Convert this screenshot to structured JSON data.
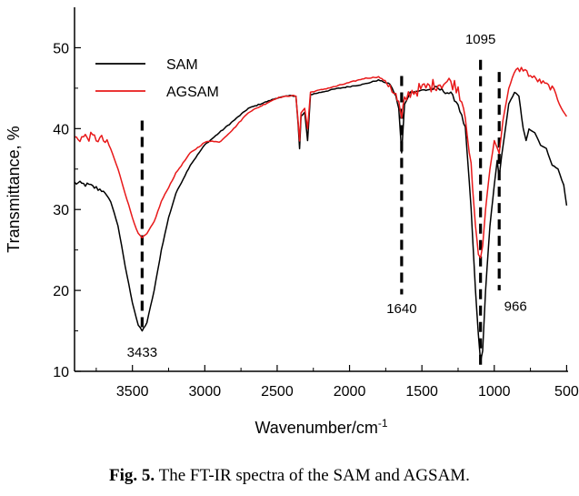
{
  "chart_data": {
    "type": "line",
    "xlabel": "Wavenumber/cm",
    "xlabel_sup": "-1",
    "ylabel": "Transmittance, %",
    "xlim": [
      3900,
      490
    ],
    "ylim": [
      10,
      55
    ],
    "x_ticks": [
      3500,
      3000,
      2500,
      2000,
      1500,
      1000,
      500
    ],
    "y_ticks": [
      10,
      20,
      30,
      40,
      50
    ],
    "legend_placement": "top-left",
    "grid": false,
    "series": [
      {
        "name": "SAM",
        "color": "#000000",
        "points": [
          [
            3900,
            33.3
          ],
          [
            3800,
            33.0
          ],
          [
            3700,
            32.3
          ],
          [
            3650,
            31.0
          ],
          [
            3600,
            28.0
          ],
          [
            3550,
            23.0
          ],
          [
            3500,
            18.5
          ],
          [
            3460,
            15.7
          ],
          [
            3433,
            15.0
          ],
          [
            3400,
            16.0
          ],
          [
            3350,
            20.0
          ],
          [
            3300,
            25.0
          ],
          [
            3250,
            29.0
          ],
          [
            3200,
            32.0
          ],
          [
            3100,
            35.5
          ],
          [
            3000,
            38.0
          ],
          [
            2900,
            39.5
          ],
          [
            2700,
            42.5
          ],
          [
            2500,
            43.8
          ],
          [
            2400,
            44.1
          ],
          [
            2370,
            44.0
          ],
          [
            2355,
            40.5
          ],
          [
            2345,
            37.5
          ],
          [
            2335,
            41.5
          ],
          [
            2310,
            42.0
          ],
          [
            2290,
            38.5
          ],
          [
            2270,
            44.2
          ],
          [
            2100,
            44.9
          ],
          [
            1900,
            45.5
          ],
          [
            1800,
            46.0
          ],
          [
            1720,
            45.5
          ],
          [
            1680,
            44.0
          ],
          [
            1660,
            42.5
          ],
          [
            1640,
            37.0
          ],
          [
            1620,
            43.0
          ],
          [
            1580,
            44.5
          ],
          [
            1400,
            45.0
          ],
          [
            1300,
            44.3
          ],
          [
            1250,
            43.0
          ],
          [
            1200,
            40.0
          ],
          [
            1160,
            30.0
          ],
          [
            1130,
            20.0
          ],
          [
            1110,
            14.5
          ],
          [
            1095,
            11.2
          ],
          [
            1080,
            12.5
          ],
          [
            1060,
            20.0
          ],
          [
            1030,
            28.0
          ],
          [
            1000,
            33.0
          ],
          [
            980,
            36.0
          ],
          [
            966,
            34.0
          ],
          [
            950,
            36.5
          ],
          [
            900,
            43.0
          ],
          [
            860,
            44.5
          ],
          [
            830,
            44.0
          ],
          [
            800,
            40.0
          ],
          [
            780,
            38.5
          ],
          [
            760,
            40.0
          ],
          [
            720,
            39.5
          ],
          [
            680,
            38.0
          ],
          [
            640,
            37.5
          ],
          [
            600,
            35.5
          ],
          [
            560,
            35.0
          ],
          [
            520,
            33.0
          ],
          [
            500,
            30.5
          ]
        ]
      },
      {
        "name": "AGSAM",
        "color": "#e8191a",
        "points": [
          [
            3900,
            38.8
          ],
          [
            3800,
            39.0
          ],
          [
            3700,
            38.6
          ],
          [
            3650,
            37.5
          ],
          [
            3600,
            35.0
          ],
          [
            3550,
            32.0
          ],
          [
            3500,
            29.0
          ],
          [
            3460,
            27.0
          ],
          [
            3433,
            26.5
          ],
          [
            3400,
            27.0
          ],
          [
            3350,
            28.5
          ],
          [
            3300,
            31.0
          ],
          [
            3200,
            34.5
          ],
          [
            3100,
            37.0
          ],
          [
            3000,
            38.3
          ],
          [
            2950,
            38.5
          ],
          [
            2900,
            38.3
          ],
          [
            2800,
            40.0
          ],
          [
            2700,
            42.0
          ],
          [
            2500,
            43.8
          ],
          [
            2400,
            44.1
          ],
          [
            2370,
            44.0
          ],
          [
            2355,
            40.8
          ],
          [
            2345,
            38.5
          ],
          [
            2335,
            42.0
          ],
          [
            2310,
            42.5
          ],
          [
            2290,
            40.0
          ],
          [
            2270,
            44.5
          ],
          [
            2100,
            45.2
          ],
          [
            1900,
            46.2
          ],
          [
            1800,
            46.4
          ],
          [
            1720,
            45.5
          ],
          [
            1680,
            44.0
          ],
          [
            1660,
            43.0
          ],
          [
            1640,
            41.0
          ],
          [
            1620,
            43.5
          ],
          [
            1580,
            44.5
          ],
          [
            1400,
            45.5
          ],
          [
            1300,
            45.8
          ],
          [
            1250,
            45.0
          ],
          [
            1200,
            42.0
          ],
          [
            1160,
            35.0
          ],
          [
            1130,
            28.0
          ],
          [
            1110,
            24.5
          ],
          [
            1095,
            24.0
          ],
          [
            1080,
            25.5
          ],
          [
            1060,
            30.0
          ],
          [
            1030,
            35.0
          ],
          [
            1000,
            38.5
          ],
          [
            966,
            37.0
          ],
          [
            940,
            41.0
          ],
          [
            900,
            45.0
          ],
          [
            850,
            47.2
          ],
          [
            800,
            47.4
          ],
          [
            750,
            46.5
          ],
          [
            700,
            46.0
          ],
          [
            600,
            45.0
          ],
          [
            500,
            41.5
          ]
        ]
      }
    ],
    "annotations": [
      {
        "label": "3433",
        "x": 3433,
        "y_from": 15.0,
        "y_to": 41.0,
        "label_y": 11.8,
        "label_pos": "below"
      },
      {
        "label": "1640",
        "x": 1640,
        "y_from": 19.5,
        "y_to": 46.5,
        "label_y": 17.2,
        "label_pos": "below"
      },
      {
        "label": "1095",
        "x": 1095,
        "y_from": 10.0,
        "y_to": 48.5,
        "label_y": 50.5,
        "label_pos": "above"
      },
      {
        "label": "966",
        "x": 966,
        "y_from": 20.0,
        "y_to": 47.0,
        "label_y": 17.5,
        "label_pos": "below-right"
      }
    ]
  },
  "caption": {
    "fig_label": "Fig. 5.",
    "text": "The FT-IR spectra of the SAM and AGSAM."
  }
}
